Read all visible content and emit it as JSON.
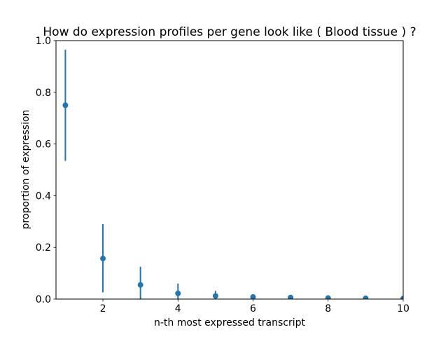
{
  "figure": {
    "background": "#ffffff"
  },
  "chart_data": {
    "type": "scatter",
    "title": "How do expression profiles per gene look like ( Blood tissue ) ?",
    "xlabel": "n-th most expressed transcript",
    "ylabel": "proportion of expression",
    "x": [
      1,
      2,
      3,
      4,
      5,
      6,
      7,
      8,
      9,
      10
    ],
    "y": [
      0.75,
      0.157,
      0.055,
      0.022,
      0.012,
      0.008,
      0.006,
      0.004,
      0.003,
      0.002
    ],
    "yerr_low": [
      0.535,
      0.026,
      0.0,
      0.0,
      0.0,
      0.002,
      0.002,
      0.001,
      0.0,
      0.0
    ],
    "yerr_high": [
      0.965,
      0.29,
      0.125,
      0.06,
      0.032,
      0.016,
      0.01,
      0.007,
      0.005,
      0.004
    ],
    "xlim": [
      0.75,
      10.0
    ],
    "ylim": [
      0.0,
      1.0
    ],
    "xticks": [
      2,
      4,
      6,
      8,
      10
    ],
    "xtick_labels": [
      "2",
      "4",
      "6",
      "8",
      "10"
    ],
    "yticks": [
      0.0,
      0.2,
      0.4,
      0.6,
      0.8,
      1.0
    ],
    "ytick_labels": [
      "0.0",
      "0.2",
      "0.4",
      "0.6",
      "0.8",
      "1.0"
    ],
    "grid": false,
    "legend_position": "none",
    "marker_color": "#1f77b4",
    "errorbar_color": "#1f77b4",
    "axis_color": "#000000",
    "text_color": "#000000"
  }
}
